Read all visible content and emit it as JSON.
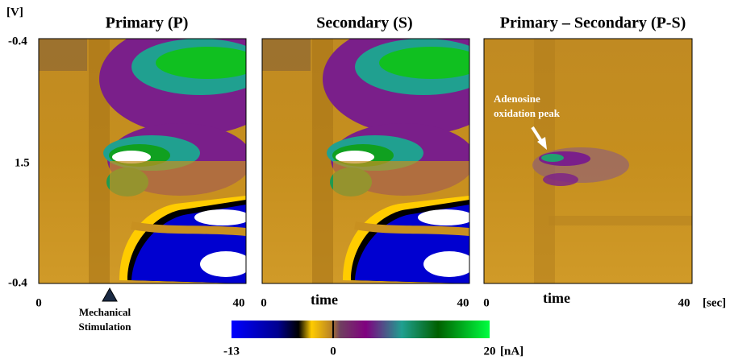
{
  "panels": [
    {
      "title": "Primary (P)",
      "x_start": "0",
      "x_end": "40"
    },
    {
      "title": "Secondary (S)",
      "x_start": "0",
      "x_label": "time",
      "x_end": "40"
    },
    {
      "title": "Primary – Secondary (P-S)",
      "x_start": "0",
      "x_label": "time",
      "x_end": "40",
      "x_unit": "[sec]",
      "annotation": [
        "Adenosine",
        "oxidation peak"
      ]
    }
  ],
  "y_axis": {
    "unit": "[V]",
    "tick_labels": [
      "-0.4",
      "1.5",
      "-0.4"
    ]
  },
  "stimulus": [
    "Mechanical",
    "Stimulation"
  ],
  "colorbar": {
    "range": [
      -13,
      20
    ],
    "ticks": [
      -13,
      0,
      20
    ],
    "unit": "[nA]"
  }
}
